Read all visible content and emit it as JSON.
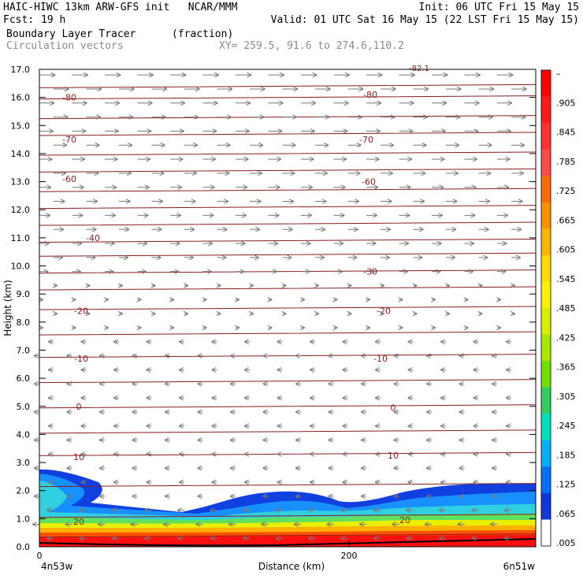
{
  "header": {
    "title": "HAIC-HIWC 13km ARW-GFS init   NCAR/MMM",
    "fcst_label": "Fcst:",
    "fcst_value": "19 h",
    "init": "Init: 06 UTC Fri 15 May 15",
    "valid": "Valid: 01 UTC Sat 16 May 15 (22 LST Fri 15 May 15)",
    "field": "Boundary Layer Tracer",
    "units": "(fraction)",
    "vectors": "Circulation vectors",
    "xy": "XY= 259.5, 91.6 to 274.6,110.2"
  },
  "chart_data": {
    "type": "heatmap",
    "xlabel": "Distance (km)",
    "ylabel": "Height (km)",
    "x_ticks": [
      0,
      200
    ],
    "x_end_labels": [
      "4n53w",
      "6n51w"
    ],
    "ylim": [
      0.0,
      17.0
    ],
    "y_ticks": [
      "0.0",
      "1.0",
      "2.0",
      "3.0",
      "4.0",
      "5.0",
      "6.0",
      "7.0",
      "8.0",
      "9.0",
      "10.0",
      "11.0",
      "12.0",
      "13.0",
      "14.0",
      "15.0",
      "16.0",
      "17.0"
    ],
    "colorbar": {
      "labels": [
        "–",
        ".905",
        ".845",
        ".785",
        ".725",
        ".665",
        ".605",
        ".545",
        ".485",
        ".425",
        ".365",
        ".305",
        ".245",
        ".185",
        ".125",
        ".065",
        ".005"
      ],
      "colors": [
        "#ff0000",
        "#ff1a1a",
        "#ff3030",
        "#ff4a4a",
        "#ff6a00",
        "#ff9000",
        "#ffb400",
        "#ffd800",
        "#fff000",
        "#d8f000",
        "#a8e800",
        "#70e000",
        "#30d060",
        "#00e0c0",
        "#00b0ff",
        "#0070ff",
        "#1038e0",
        "#ffffff"
      ]
    },
    "temperature_contours": {
      "left_labels": [
        "-80",
        "-70",
        "-60",
        "-40",
        "-20",
        "-10",
        "0",
        "10",
        "20"
      ],
      "right_labels": [
        "-80",
        "-70",
        "-60",
        "-30",
        "-20",
        "-10",
        "0",
        "10",
        "20"
      ],
      "top_label": "-82.1"
    }
  }
}
